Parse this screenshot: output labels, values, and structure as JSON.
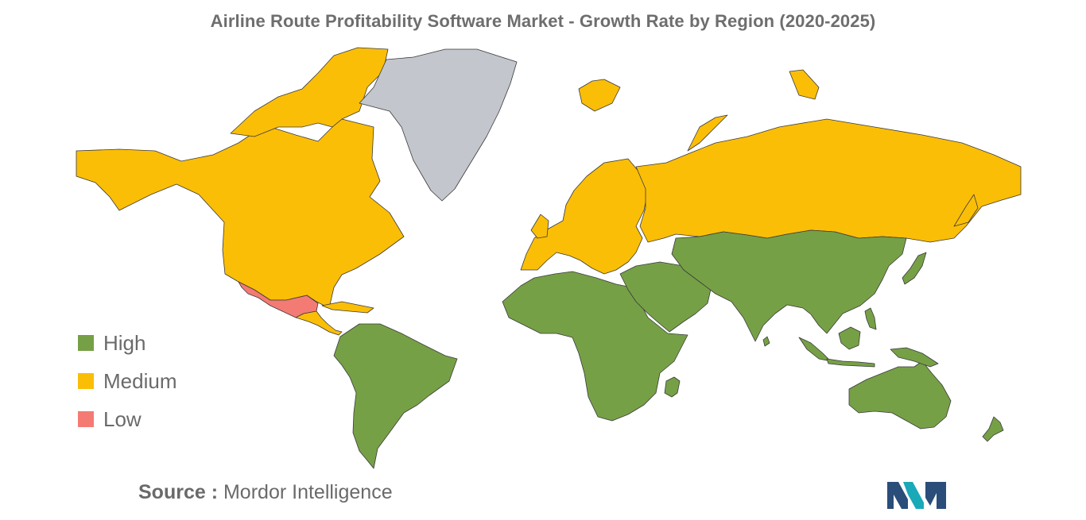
{
  "title": "Airline Route Profitability Software Market - Growth Rate by Region (2020-2025)",
  "legend": [
    {
      "label": "High",
      "color": "#76a046"
    },
    {
      "label": "Medium",
      "color": "#fbbe07"
    },
    {
      "label": "Low",
      "color": "#f47a74"
    }
  ],
  "no_data_color": "#c3c6cc",
  "border_color": "#3a3a3a",
  "regions": [
    {
      "name": "North America (USA, Canada, Alaska)",
      "category": "Medium"
    },
    {
      "name": "Mexico",
      "category": "Low"
    },
    {
      "name": "Central America & Caribbean",
      "category": "Medium"
    },
    {
      "name": "South America",
      "category": "High"
    },
    {
      "name": "Greenland",
      "category": "None"
    },
    {
      "name": "Europe",
      "category": "Medium"
    },
    {
      "name": "Russia",
      "category": "Medium"
    },
    {
      "name": "Africa",
      "category": "High"
    },
    {
      "name": "Middle East",
      "category": "High"
    },
    {
      "name": "Asia",
      "category": "High"
    },
    {
      "name": "Australia & Oceania",
      "category": "High"
    }
  ],
  "source": {
    "prefix": "Source :",
    "text": "Mordor Intelligence"
  },
  "logo": {
    "name": "mordor-intelligence-logo",
    "colors": [
      "#2a4d7a",
      "#1aa9b8"
    ]
  }
}
